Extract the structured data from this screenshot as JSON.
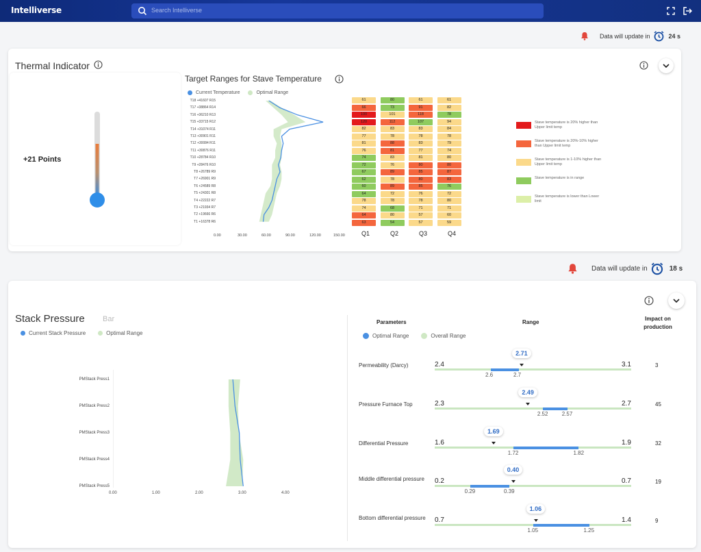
{
  "app": {
    "logo": "Intelliverse"
  },
  "search": {
    "placeholder": "Search Intelliverse"
  },
  "update1": {
    "label": "Data will update in",
    "seconds": "24 s"
  },
  "update2": {
    "label": "Data will update in",
    "seconds": "18 s"
  },
  "thermal": {
    "title": "Thermal Indicator",
    "points": "+21 Points",
    "chart_title": "Target Ranges for Stave Temperature",
    "legend": {
      "current": "Current Temperature",
      "optimal": "Optimal Range"
    },
    "colors": {
      "current": "#4a90e2",
      "optimal": "#cfe8c4"
    }
  },
  "heat_legend": [
    {
      "color": "#e31a1c",
      "text": "Stave temperature is 20% higher than Upper limit temp"
    },
    {
      "color": "#f4663d",
      "text": "Stave temperature is 20%-10% higher than Upper limit temp"
    },
    {
      "color": "#fbd98a",
      "text": "Stave temperature is 1-10% higher than Upper limit temp"
    },
    {
      "color": "#8fcb5e",
      "text": "Stave temperature is in range"
    },
    {
      "color": "#dcefa8",
      "text": "Stave temperature is lower than Lower limit"
    }
  ],
  "stack": {
    "title": "Stack Pressure",
    "subtitle": "Bar",
    "legend": {
      "current": "Current Stack Pressure",
      "optimal": "Optimal Range"
    },
    "table_headers": {
      "parameters": "Parameters",
      "range": "Range",
      "impact": "Impact on production"
    },
    "table_legend": {
      "optimal": "Optimal Range",
      "overall": "Overall Range"
    },
    "rows": [
      {
        "name": "Permeability (Darcy)",
        "min": "2.4",
        "max": "3.1",
        "opt_low": "2.6",
        "opt_high": "2.7",
        "current": "2.71",
        "impact": "3"
      },
      {
        "name": "Pressure Furnace Top",
        "min": "2.3",
        "max": "2.7",
        "opt_low": "2.52",
        "opt_high": "2.57",
        "current": "2.49",
        "impact": "45"
      },
      {
        "name": "Differential Pressure",
        "min": "1.6",
        "max": "1.9",
        "opt_low": "1.72",
        "opt_high": "1.82",
        "current": "1.69",
        "impact": "32"
      },
      {
        "name": "Middle differential pressure",
        "min": "0.2",
        "max": "0.7",
        "opt_low": "0.29",
        "opt_high": "0.39",
        "current": "0.40",
        "impact": "19"
      },
      {
        "name": "Bottom differential pressure",
        "min": "0.7",
        "max": "1.4",
        "opt_low": "1.05",
        "opt_high": "1.25",
        "current": "1.06",
        "impact": "9"
      }
    ]
  },
  "chart_data": [
    {
      "type": "line",
      "categories": [
        "T18 +41607 R15",
        "T17 +38864 R14",
        "T16 +36210 R13",
        "T15 +33715 R12",
        "T14 +31074 R11",
        "T13 +30901 R11",
        "T12 +30084 R11",
        "T11 +30876 R11",
        "T10 +28784 R10",
        "T9 +28476 R10",
        "T8 +26789 R9",
        "T7 +26901 R9",
        "T6 +24589 R8",
        "T5 +24301 R8",
        "T4 +22222 R7",
        "T3 +21934 R7",
        "T2 +19666 R6",
        "T1 +16378 R6"
      ],
      "xticks": [
        "0.00",
        "30.00",
        "60.00",
        "90.00",
        "120.00",
        "150.00"
      ],
      "xlim": [
        0,
        150
      ],
      "series": [
        {
          "name": "Current Temperature",
          "values": [
            64,
            78,
            100,
            132,
            90,
            80,
            82,
            80,
            79,
            76,
            78,
            74,
            72,
            70,
            68,
            64,
            58,
            57
          ]
        },
        {
          "name": "Optimal Range",
          "low": [
            60,
            70,
            80,
            88,
            70,
            70,
            74,
            72,
            72,
            68,
            68,
            68,
            66,
            60,
            58,
            56,
            54,
            52
          ],
          "high": [
            66,
            80,
            96,
            110,
            80,
            78,
            80,
            80,
            80,
            78,
            80,
            80,
            78,
            74,
            72,
            70,
            68,
            64
          ]
        }
      ]
    },
    {
      "type": "heatmap",
      "columns": [
        "Q1",
        "Q2",
        "Q3",
        "Q4"
      ],
      "values": [
        [
          61,
          80,
          61,
          61
        ],
        [
          66,
          73,
          91,
          82
        ],
        [
          100,
          101,
          118,
          78
        ],
        [
          120,
          112,
          107,
          94
        ],
        [
          82,
          83,
          83,
          84
        ],
        [
          77,
          78,
          78,
          78
        ],
        [
          81,
          88,
          83,
          79
        ],
        [
          76,
          81,
          77,
          74
        ],
        [
          74,
          83,
          81,
          80
        ],
        [
          72,
          76,
          80,
          80
        ],
        [
          67,
          89,
          85,
          87
        ],
        [
          62,
          78,
          80,
          83
        ],
        [
          60,
          89,
          85,
          76
        ],
        [
          64,
          72,
          76,
          72
        ],
        [
          78,
          78,
          78,
          80
        ],
        [
          74,
          68,
          71,
          71
        ],
        [
          64,
          80,
          57,
          60
        ],
        [
          63,
          54,
          57,
          59
        ]
      ],
      "cell_colors": [
        [
          "#fbd98a",
          "#8fcb5e",
          "#fbd98a",
          "#fbd98a"
        ],
        [
          "#f4663d",
          "#8fcb5e",
          "#f4663d",
          "#fbd98a"
        ],
        [
          "#e31a1c",
          "#fbd98a",
          "#f4663d",
          "#8fcb5e"
        ],
        [
          "#e31a1c",
          "#f4663d",
          "#8fcb5e",
          "#fbd98a"
        ],
        [
          "#fbd98a",
          "#fbd98a",
          "#fbd98a",
          "#fbd98a"
        ],
        [
          "#fbd98a",
          "#fbd98a",
          "#fbd98a",
          "#fbd98a"
        ],
        [
          "#fbd98a",
          "#f4663d",
          "#fbd98a",
          "#fbd98a"
        ],
        [
          "#fbd98a",
          "#f4663d",
          "#fbd98a",
          "#fbd98a"
        ],
        [
          "#8fcb5e",
          "#fbd98a",
          "#fbd98a",
          "#fbd98a"
        ],
        [
          "#8fcb5e",
          "#fbd98a",
          "#f4663d",
          "#f4663d"
        ],
        [
          "#8fcb5e",
          "#f4663d",
          "#f4663d",
          "#f4663d"
        ],
        [
          "#8fcb5e",
          "#fbd98a",
          "#f4663d",
          "#f4663d"
        ],
        [
          "#8fcb5e",
          "#f4663d",
          "#f4663d",
          "#8fcb5e"
        ],
        [
          "#8fcb5e",
          "#fbd98a",
          "#fbd98a",
          "#fbd98a"
        ],
        [
          "#fbd98a",
          "#fbd98a",
          "#fbd98a",
          "#fbd98a"
        ],
        [
          "#fbd98a",
          "#8fcb5e",
          "#fbd98a",
          "#fbd98a"
        ],
        [
          "#f4663d",
          "#fbd98a",
          "#fbd98a",
          "#fbd98a"
        ],
        [
          "#f4663d",
          "#8fcb5e",
          "#fbd98a",
          "#fbd98a"
        ]
      ]
    },
    {
      "type": "line",
      "categories": [
        "PMStack Press1",
        "PMStack Press2",
        "PMStack Press3",
        "PMStack Press4",
        "PMStack Press5"
      ],
      "xticks": [
        "0.00",
        "1.00",
        "2.00",
        "3.00",
        "4.00"
      ],
      "xlim": [
        0,
        4
      ],
      "series": [
        {
          "name": "Current Stack Pressure",
          "values": [
            2.78,
            2.83,
            2.93,
            2.95,
            3.02
          ]
        },
        {
          "name": "Optimal Range",
          "low": [
            2.68,
            2.68,
            2.72,
            2.72,
            2.62
          ],
          "high": [
            2.95,
            2.9,
            2.92,
            3.02,
            3.0
          ]
        }
      ]
    }
  ]
}
